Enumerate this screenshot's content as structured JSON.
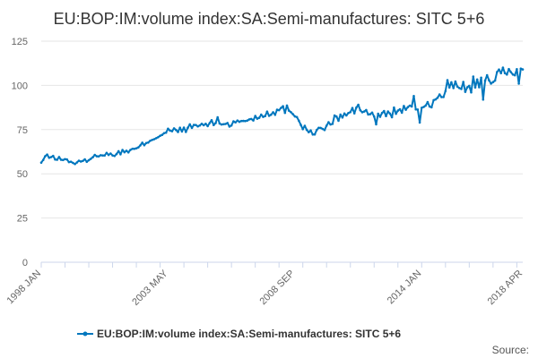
{
  "chart_data": {
    "type": "line",
    "title": "EU:BOP:IM:volume index:SA:Semi-manufactures: SITC 5+6",
    "xlabel": "",
    "ylabel": "",
    "ylim": [
      0,
      125
    ],
    "yticks": [
      0,
      25,
      50,
      75,
      100,
      125
    ],
    "xticks": [
      "1998 JAN",
      "2003 MAY",
      "2008 SEP",
      "2014 JAN",
      "2018 APR"
    ],
    "x_range": [
      "1998 JAN",
      "2018 APR"
    ],
    "grid": true,
    "legend": "bottom-center",
    "series": [
      {
        "name": "EU:BOP:IM:volume index:SA:Semi-manufactures: SITC 5+6",
        "color": "#0077be",
        "anchors": [
          [
            "1998 JAN",
            56
          ],
          [
            "1998 MAR",
            60
          ],
          [
            "1999 JAN",
            58
          ],
          [
            "1999 JUN",
            56
          ],
          [
            "2000 JAN",
            58
          ],
          [
            "2000 JUN",
            61
          ],
          [
            "2001 JAN",
            61
          ],
          [
            "2001 JUN",
            62
          ],
          [
            "2002 JAN",
            64
          ],
          [
            "2002 JUN",
            68
          ],
          [
            "2003 JAN",
            72
          ],
          [
            "2003 JUN",
            74
          ],
          [
            "2004 JAN",
            75
          ],
          [
            "2004 JUN",
            77
          ],
          [
            "2005 JAN",
            78
          ],
          [
            "2005 JUN",
            79
          ],
          [
            "2006 JAN",
            78
          ],
          [
            "2006 JUN",
            80
          ],
          [
            "2007 JAN",
            82
          ],
          [
            "2007 JUN",
            84
          ],
          [
            "2008 JAN",
            86
          ],
          [
            "2008 JUN",
            87
          ],
          [
            "2008 SEP",
            84
          ],
          [
            "2008 DEC",
            78
          ],
          [
            "2009 MAY",
            73
          ],
          [
            "2009 DEC",
            76
          ],
          [
            "2010 JUN",
            81
          ],
          [
            "2011 JAN",
            85
          ],
          [
            "2011 JUN",
            86
          ],
          [
            "2012 JAN",
            83
          ],
          [
            "2012 JUN",
            84
          ],
          [
            "2013 JAN",
            86
          ],
          [
            "2013 JUN",
            87
          ],
          [
            "2014 JAN",
            88
          ],
          [
            "2014 JUN",
            90
          ],
          [
            "2015 JAN",
            96
          ],
          [
            "2015 JUN",
            101
          ],
          [
            "2016 JAN",
            98
          ],
          [
            "2016 JUN",
            101
          ],
          [
            "2017 JAN",
            104
          ],
          [
            "2017 JUN",
            107
          ],
          [
            "2018 JAN",
            108
          ],
          [
            "2018 APR",
            108
          ]
        ],
        "spikes": [
          [
            "2001 JUN",
            63.5
          ],
          [
            "2003 MAY",
            75.5
          ],
          [
            "2005 JUN",
            82
          ],
          [
            "2006 NOV",
            81
          ],
          [
            "2008 NOV",
            80
          ],
          [
            "2010 MAY",
            83
          ],
          [
            "2011 MAY",
            89
          ],
          [
            "2012 FEB",
            78
          ],
          [
            "2012 OCT",
            82
          ],
          [
            "2013 SEP",
            94
          ],
          [
            "2013 DEC",
            79
          ],
          [
            "2014 SEP",
            93
          ],
          [
            "2015 FEB",
            103
          ],
          [
            "2015 SEP",
            98
          ],
          [
            "2016 MAR",
            105
          ],
          [
            "2016 AUG",
            92
          ],
          [
            "2017 JUN",
            110
          ],
          [
            "2018 FEB",
            101
          ],
          [
            "2018 APR",
            109
          ]
        ]
      }
    ]
  },
  "credits": "Source:"
}
